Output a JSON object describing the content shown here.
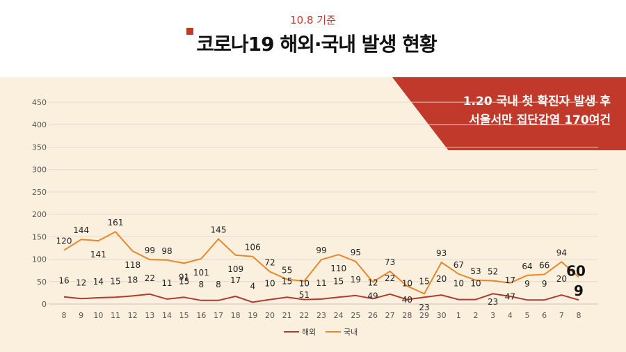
{
  "header": {
    "date": "10.8 기준",
    "title": "코로나19 해외·국내 발생 현황"
  },
  "banner": {
    "line1": "1.20 국내 첫 확진자 발생 후",
    "line2": "서울서만 집단감염 170여건"
  },
  "colors": {
    "accent": "#c0392b",
    "overseas": "#b03a2e",
    "domestic": "#e8862a",
    "panel": "#fbf0de"
  },
  "chart_data": {
    "type": "line",
    "title": "",
    "xlabel": "",
    "ylabel": "",
    "ylim": [
      0,
      450
    ],
    "yticks": [
      0,
      50,
      100,
      150,
      200,
      250,
      300,
      350,
      400,
      450
    ],
    "grid": true,
    "legend": "bottom-center",
    "categories": [
      "8",
      "9",
      "10",
      "11",
      "12",
      "13",
      "14",
      "15",
      "16",
      "17",
      "18",
      "19",
      "20",
      "21",
      "22",
      "23",
      "24",
      "25",
      "26",
      "27",
      "28",
      "29",
      "30",
      "1",
      "2",
      "3",
      "4",
      "5",
      "6",
      "7",
      "8"
    ],
    "series": [
      {
        "name": "해외",
        "values": [
          16,
          12,
          14,
          15,
          18,
          22,
          11,
          15,
          8,
          8,
          17,
          4,
          10,
          15,
          10,
          11,
          15,
          19,
          12,
          22,
          10,
          15,
          20,
          10,
          10,
          23,
          17,
          9,
          9,
          20,
          9
        ]
      },
      {
        "name": "국내",
        "values": [
          120,
          144,
          141,
          161,
          118,
          99,
          98,
          91,
          101,
          145,
          109,
          106,
          72,
          55,
          51,
          99,
          110,
          95,
          49,
          73,
          40,
          23,
          93,
          67,
          53,
          52,
          47,
          64,
          66,
          94,
          60
        ]
      }
    ]
  }
}
